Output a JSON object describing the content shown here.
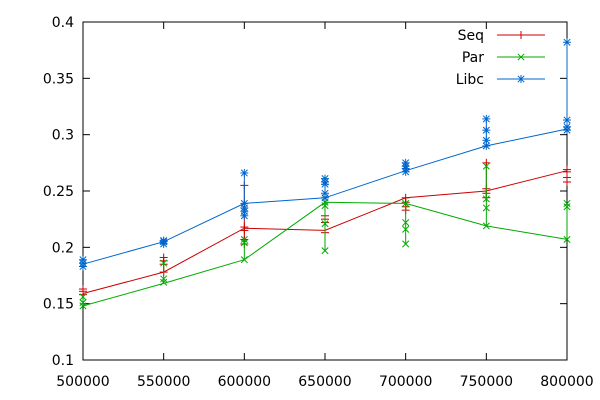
{
  "chart_data": {
    "type": "line",
    "title": "",
    "xlabel": "",
    "ylabel": "",
    "xlim": [
      500000,
      800000
    ],
    "ylim": [
      0.1,
      0.4
    ],
    "x_ticks": [
      500000,
      550000,
      600000,
      650000,
      700000,
      750000,
      800000
    ],
    "x_tick_labels": [
      "500000",
      "550000",
      "600000",
      "650000",
      "700000",
      "750000",
      "800000"
    ],
    "y_ticks": [
      0.1,
      0.15,
      0.2,
      0.25,
      0.3,
      0.35,
      0.4
    ],
    "y_tick_labels": [
      "0.1",
      "0.15",
      "0.2",
      "0.25",
      "0.3",
      "0.35",
      "0.4"
    ],
    "grid": false,
    "legend_position": "top-right",
    "series": [
      {
        "name": "Seq",
        "color": "#cc0000",
        "marker": "plus",
        "line": [
          [
            500000,
            0.159
          ],
          [
            550000,
            0.178
          ],
          [
            600000,
            0.217
          ],
          [
            650000,
            0.215
          ],
          [
            700000,
            0.244
          ],
          [
            750000,
            0.25
          ],
          [
            800000,
            0.268
          ]
        ],
        "points": [
          [
            500000,
            0.158
          ],
          [
            500000,
            0.161
          ],
          [
            500000,
            0.163
          ],
          [
            550000,
            0.178
          ],
          [
            550000,
            0.185
          ],
          [
            550000,
            0.188
          ],
          [
            550000,
            0.191
          ],
          [
            600000,
            0.203
          ],
          [
            600000,
            0.207
          ],
          [
            600000,
            0.215
          ],
          [
            600000,
            0.218
          ],
          [
            600000,
            0.255
          ],
          [
            650000,
            0.213
          ],
          [
            650000,
            0.222
          ],
          [
            650000,
            0.225
          ],
          [
            650000,
            0.228
          ],
          [
            700000,
            0.233
          ],
          [
            700000,
            0.236
          ],
          [
            700000,
            0.24
          ],
          [
            700000,
            0.244
          ],
          [
            750000,
            0.244
          ],
          [
            750000,
            0.248
          ],
          [
            750000,
            0.252
          ],
          [
            750000,
            0.275
          ],
          [
            800000,
            0.258
          ],
          [
            800000,
            0.262
          ],
          [
            800000,
            0.267
          ],
          [
            800000,
            0.269
          ]
        ]
      },
      {
        "name": "Par",
        "color": "#00aa00",
        "marker": "cross",
        "line": [
          [
            500000,
            0.148
          ],
          [
            550000,
            0.168
          ],
          [
            600000,
            0.189
          ],
          [
            650000,
            0.24
          ],
          [
            700000,
            0.239
          ],
          [
            750000,
            0.219
          ],
          [
            800000,
            0.207
          ]
        ],
        "points": [
          [
            500000,
            0.148
          ],
          [
            500000,
            0.151
          ],
          [
            500000,
            0.156
          ],
          [
            550000,
            0.169
          ],
          [
            550000,
            0.172
          ],
          [
            550000,
            0.186
          ],
          [
            600000,
            0.189
          ],
          [
            600000,
            0.204
          ],
          [
            600000,
            0.207
          ],
          [
            650000,
            0.197
          ],
          [
            650000,
            0.221
          ],
          [
            650000,
            0.237
          ],
          [
            650000,
            0.24
          ],
          [
            700000,
            0.203
          ],
          [
            700000,
            0.216
          ],
          [
            700000,
            0.222
          ],
          [
            700000,
            0.239
          ],
          [
            750000,
            0.219
          ],
          [
            750000,
            0.235
          ],
          [
            750000,
            0.243
          ],
          [
            750000,
            0.272
          ],
          [
            800000,
            0.207
          ],
          [
            800000,
            0.236
          ],
          [
            800000,
            0.239
          ]
        ]
      },
      {
        "name": "Libc",
        "color": "#0066cc",
        "marker": "star",
        "line": [
          [
            500000,
            0.185
          ],
          [
            550000,
            0.205
          ],
          [
            600000,
            0.239
          ],
          [
            650000,
            0.244
          ],
          [
            700000,
            0.268
          ],
          [
            750000,
            0.29
          ],
          [
            800000,
            0.305
          ]
        ],
        "points": [
          [
            500000,
            0.183
          ],
          [
            500000,
            0.186
          ],
          [
            500000,
            0.189
          ],
          [
            550000,
            0.203
          ],
          [
            550000,
            0.205
          ],
          [
            550000,
            0.206
          ],
          [
            600000,
            0.228
          ],
          [
            600000,
            0.232
          ],
          [
            600000,
            0.235
          ],
          [
            600000,
            0.239
          ],
          [
            600000,
            0.266
          ],
          [
            650000,
            0.244
          ],
          [
            650000,
            0.248
          ],
          [
            650000,
            0.256
          ],
          [
            650000,
            0.258
          ],
          [
            650000,
            0.261
          ],
          [
            700000,
            0.267
          ],
          [
            700000,
            0.27
          ],
          [
            700000,
            0.272
          ],
          [
            700000,
            0.275
          ],
          [
            750000,
            0.29
          ],
          [
            750000,
            0.295
          ],
          [
            750000,
            0.304
          ],
          [
            750000,
            0.314
          ],
          [
            800000,
            0.304
          ],
          [
            800000,
            0.307
          ],
          [
            800000,
            0.313
          ],
          [
            800000,
            0.382
          ]
        ]
      }
    ]
  }
}
